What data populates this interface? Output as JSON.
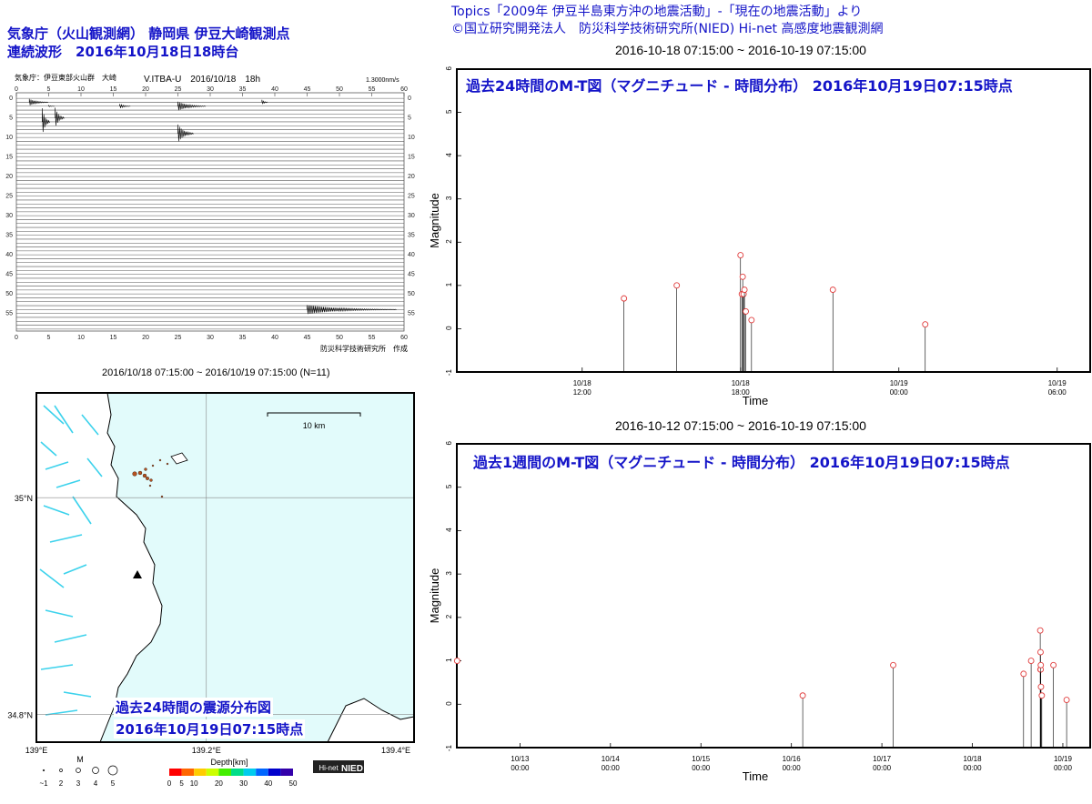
{
  "header_left": {
    "line1": "気象庁（火山観測網） 静岡県 伊豆大崎観測点",
    "line2": "連続波形　2016年10月18日18時台"
  },
  "header_right": {
    "line1": "Topics「2009年 伊豆半島東方沖の地震活動」-「現在の地震活動」より",
    "line2": "©国立研究開発法人　防災科学技術研究所(NIED) Hi-net 高感度地震観測網"
  },
  "seismogram": {
    "header_left": "気象庁：伊豆東部火山群　大崎",
    "header_center": "V.ITBA-U　2016/10/18　18h",
    "scale": "1.3000nm/s",
    "footer": "防災科学技術研究所　作成",
    "minute_ticks": [
      "0",
      "5",
      "10",
      "15",
      "20",
      "25",
      "30",
      "35",
      "40",
      "45",
      "50",
      "55",
      "60"
    ],
    "row_ticks": [
      "0",
      "5",
      "10",
      "15",
      "20",
      "25",
      "30",
      "35",
      "40",
      "45",
      "50",
      "55"
    ]
  },
  "map": {
    "title": "2016/10/18 07:15:00 ~ 2016/10/19 07:15:00 (N=11)",
    "scale_label": "10 km",
    "lat_labels": [
      "35°N",
      "34.8°N"
    ],
    "lon_labels": [
      "139°E",
      "139.2°E",
      "139.4°E"
    ],
    "overlay_line1": "過去24時間の震源分布図",
    "overlay_line2": "2016年10月19日07:15時点",
    "mag_title": "M",
    "mag_labels": [
      "~1",
      "2",
      "3",
      "4",
      "5"
    ],
    "depth_title": "Depth[km]",
    "depth_labels": [
      "0",
      "5",
      "10",
      "20",
      "30",
      "40",
      "50"
    ],
    "logo_left": "Hi-net",
    "logo_right": "NIED",
    "colors": {
      "sea": "#e2fbfb",
      "fault": "#3cd2ec",
      "event": "#b4501e"
    }
  },
  "chart_data": [
    {
      "type": "scatter",
      "style": "stem",
      "range_label": "2016-10-18 07:15:00 ~ 2016-10-19 07:15:00",
      "title": "過去24時間のM-T図（マグニチュード - 時間分布） 2016年10月19日07:15時点",
      "xlabel": "Time",
      "ylabel": "Magnitude",
      "xlim": [
        "2016-10-18 07:15",
        "2016-10-19 07:15"
      ],
      "ylim": [
        -1,
        6
      ],
      "yticks": [
        "-1",
        "0",
        "1",
        "2",
        "3",
        "4",
        "5",
        "6"
      ],
      "xticks": [
        {
          "t": "2016-10-18 12:00",
          "label": "10/18 12:00"
        },
        {
          "t": "2016-10-18 18:00",
          "label": "10/18 18:00"
        },
        {
          "t": "2016-10-19 00:00",
          "label": "10/19 00:00"
        },
        {
          "t": "2016-10-19 06:00",
          "label": "10/19 06:00"
        }
      ],
      "points": [
        {
          "t": "2016-10-18 13:35",
          "m": 0.7
        },
        {
          "t": "2016-10-18 15:35",
          "m": 1.0
        },
        {
          "t": "2016-10-18 18:00",
          "m": 1.7
        },
        {
          "t": "2016-10-18 18:03",
          "m": 0.8
        },
        {
          "t": "2016-10-18 18:05",
          "m": 1.2
        },
        {
          "t": "2016-10-18 18:07",
          "m": 0.8
        },
        {
          "t": "2016-10-18 18:09",
          "m": 0.9
        },
        {
          "t": "2016-10-18 18:12",
          "m": 0.4
        },
        {
          "t": "2016-10-18 18:25",
          "m": 0.2
        },
        {
          "t": "2016-10-18 21:30",
          "m": 0.9
        },
        {
          "t": "2016-10-19 01:00",
          "m": 0.1
        }
      ],
      "colors": {
        "marker": "#e03c3c",
        "stem": "#000000",
        "title": "#1414c8"
      }
    },
    {
      "type": "scatter",
      "style": "stem",
      "range_label": "2016-10-12 07:15:00 ~ 2016-10-19 07:15:00",
      "title": "過去1週間のM-T図（マグニチュード - 時間分布） 2016年10月19日07:15時点",
      "xlabel": "Time",
      "ylabel": "Magnitude",
      "xlim": [
        "2016-10-12 07:15",
        "2016-10-19 07:15"
      ],
      "ylim": [
        -1,
        6
      ],
      "yticks": [
        "-1",
        "0",
        "1",
        "2",
        "3",
        "4",
        "5",
        "6"
      ],
      "xticks": [
        {
          "t": "2016-10-13 00:00",
          "label": "10/13 00:00"
        },
        {
          "t": "2016-10-14 00:00",
          "label": "10/14 00:00"
        },
        {
          "t": "2016-10-15 00:00",
          "label": "10/15 00:00"
        },
        {
          "t": "2016-10-16 00:00",
          "label": "10/16 00:00"
        },
        {
          "t": "2016-10-17 00:00",
          "label": "10/17 00:00"
        },
        {
          "t": "2016-10-18 00:00",
          "label": "10/18 00:00"
        },
        {
          "t": "2016-10-19 00:00",
          "label": "10/19 00:00"
        }
      ],
      "points": [
        {
          "t": "2016-10-12 07:20",
          "m": 1.0
        },
        {
          "t": "2016-10-16 03:00",
          "m": 0.2
        },
        {
          "t": "2016-10-17 03:00",
          "m": 0.9
        },
        {
          "t": "2016-10-18 13:35",
          "m": 0.7
        },
        {
          "t": "2016-10-18 15:35",
          "m": 1.0
        },
        {
          "t": "2016-10-18 18:00",
          "m": 1.7
        },
        {
          "t": "2016-10-18 18:03",
          "m": 0.8
        },
        {
          "t": "2016-10-18 18:05",
          "m": 1.2
        },
        {
          "t": "2016-10-18 18:07",
          "m": 0.8
        },
        {
          "t": "2016-10-18 18:09",
          "m": 0.9
        },
        {
          "t": "2016-10-18 18:12",
          "m": 0.4
        },
        {
          "t": "2016-10-18 18:25",
          "m": 0.2
        },
        {
          "t": "2016-10-18 21:30",
          "m": 0.9
        },
        {
          "t": "2016-10-19 01:00",
          "m": 0.1
        }
      ],
      "colors": {
        "marker": "#e03c3c",
        "stem": "#000000",
        "title": "#1414c8"
      }
    }
  ]
}
